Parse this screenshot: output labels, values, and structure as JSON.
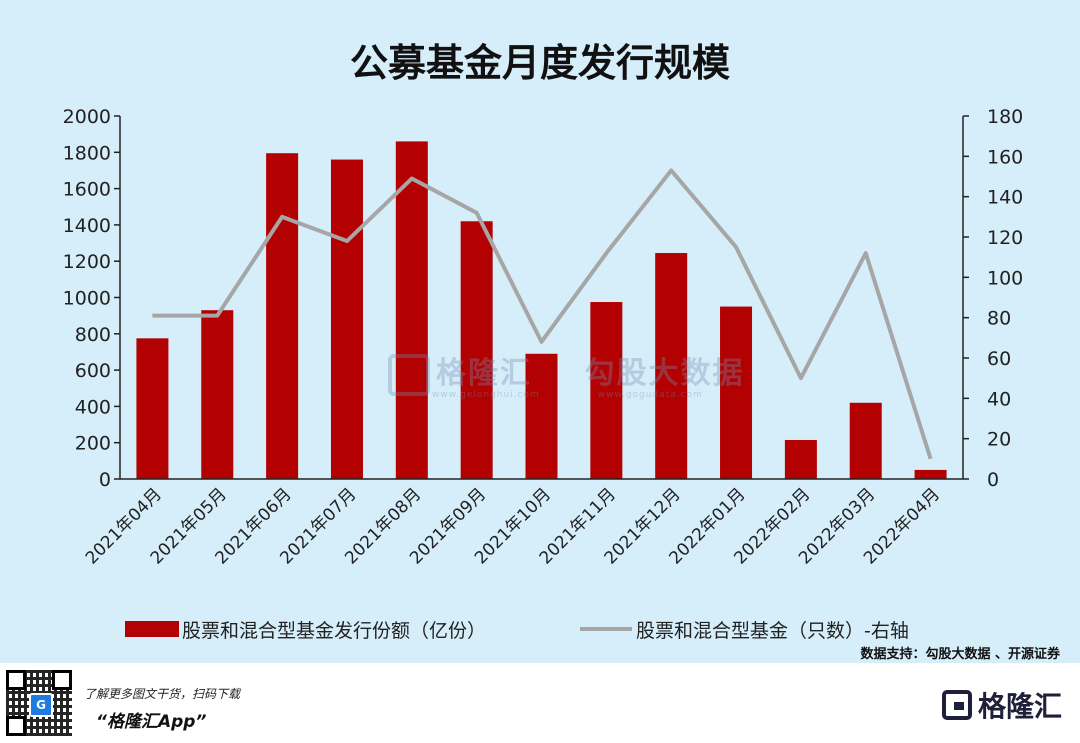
{
  "chart_data": {
    "type": "bar",
    "title": "公募基金月度发行规模",
    "categories": [
      "2021年04月",
      "2021年05月",
      "2021年06月",
      "2021年07月",
      "2021年08月",
      "2021年09月",
      "2021年10月",
      "2021年11月",
      "2021年12月",
      "2022年01月",
      "2022年02月",
      "2022年03月",
      "2022年04月"
    ],
    "series": [
      {
        "name": "股票和混合型基金发行份额（亿份）",
        "kind": "bar",
        "axis": "left",
        "color": "#b30000",
        "values": [
          775,
          930,
          1795,
          1760,
          1860,
          1420,
          690,
          975,
          1245,
          950,
          215,
          420,
          50
        ]
      },
      {
        "name": "股票和混合型基金（只数）-右轴",
        "kind": "line",
        "axis": "right",
        "color": "#a6a6a6",
        "values": [
          81,
          81,
          130,
          118,
          149,
          132,
          68,
          112,
          153,
          115,
          50,
          112,
          10
        ]
      }
    ],
    "yleft": {
      "min": 0,
      "max": 2000,
      "step": 200
    },
    "yright": {
      "min": 0,
      "max": 180,
      "step": 20
    },
    "grid": false,
    "legend": "bottom"
  },
  "source": "数据支持：勾股大数据 、开源证券",
  "watermark": {
    "brand": "格隆汇",
    "brand_url": "www.gelonghui.com",
    "partner": "勾股大数据",
    "partner_url": "www.gogudata.com"
  },
  "footer": {
    "tagline": "了解更多图文干货，扫码下载",
    "app": "“格隆汇App”",
    "qr_logo": "G",
    "brand": "格隆汇",
    "brand_icon": "gelonghui-logo-icon"
  }
}
